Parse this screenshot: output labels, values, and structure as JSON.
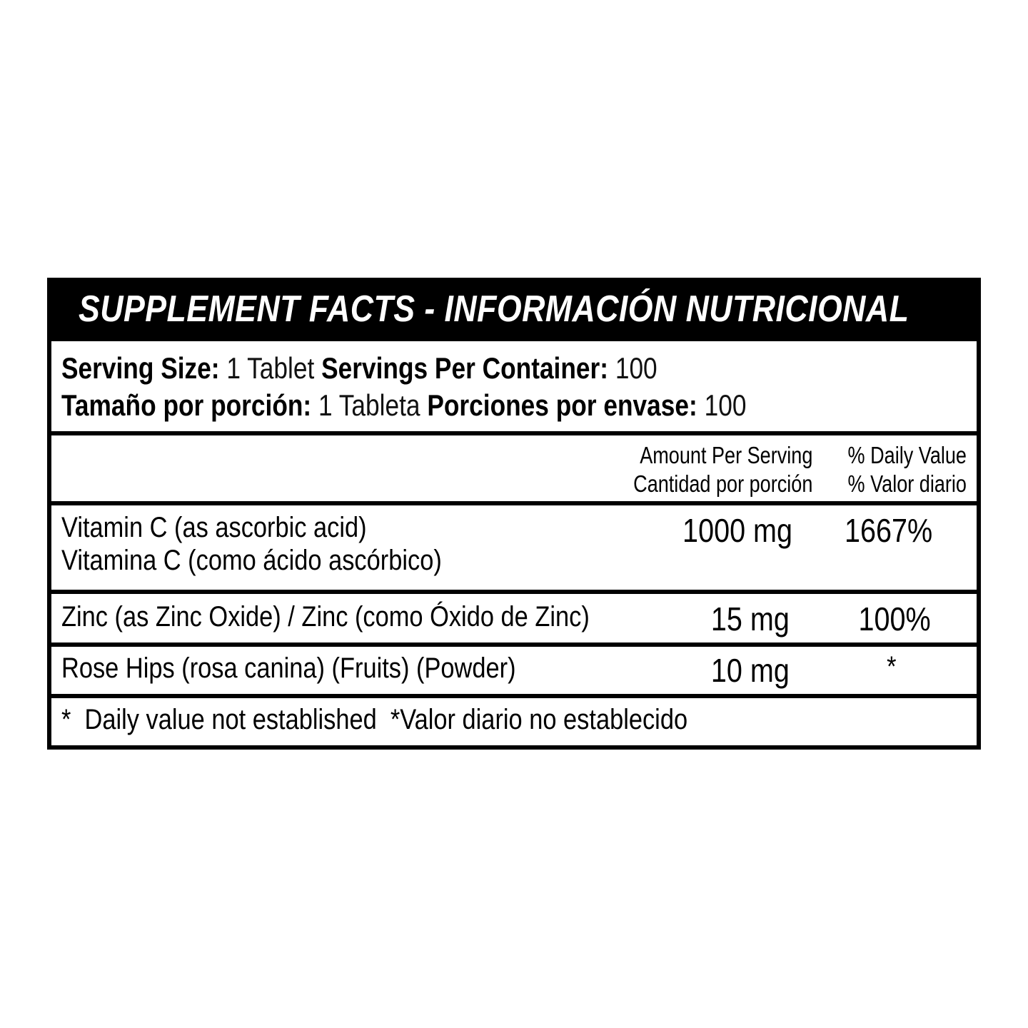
{
  "title": "SUPPLEMENT FACTS - INFORMACIÓN NUTRICIONAL",
  "serving": {
    "en": {
      "size_label": "Serving Size:",
      "size_value": "1 Tablet",
      "per_container_label": "Servings Per Container:",
      "per_container_value": "100"
    },
    "es": {
      "size_label": "Tamaño por porción:",
      "size_value": "1 Tableta",
      "per_container_label": "Porciones por envase:",
      "per_container_value": "100"
    }
  },
  "columns": {
    "amount_en": "Amount Per Serving",
    "amount_es": "Cantidad por porción",
    "dv_en": "% Daily Value",
    "dv_es": "% Valor diario"
  },
  "ingredients": [
    {
      "name": "Vitamin C (as ascorbic acid)",
      "name_es": "Vitamina C (como ácido ascórbico)",
      "amount": "1000 mg",
      "dv": "1667%"
    },
    {
      "name": "Zinc (as Zinc Oxide) / Zinc (como Óxido de Zinc)",
      "amount": "15 mg",
      "dv": "100%"
    },
    {
      "name": "Rose Hips (rosa canina) (Fruits) (Powder)",
      "amount": "10 mg",
      "dv": "*"
    }
  ],
  "footnote": "*  Daily value not established  *Valor diario no establecido"
}
